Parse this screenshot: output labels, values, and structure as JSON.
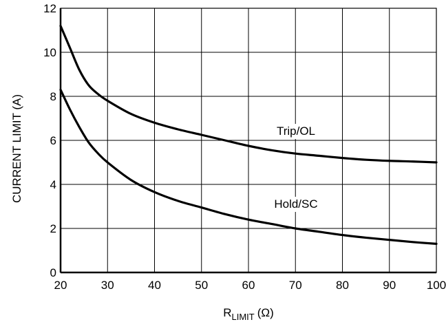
{
  "chart_data": {
    "type": "line",
    "xlabel": {
      "main": "R",
      "sub": "LIMIT",
      "unit": "(Ω)"
    },
    "ylabel": "CURRENT LIMIT (A)",
    "xlim": [
      20,
      100
    ],
    "ylim": [
      0,
      12
    ],
    "x_ticks": [
      20,
      30,
      40,
      50,
      60,
      70,
      80,
      90,
      100
    ],
    "y_ticks": [
      0,
      2,
      4,
      6,
      8,
      10,
      12
    ],
    "grid": true,
    "legend": "none",
    "series": [
      {
        "name": "Trip/OL",
        "x": [
          20,
          22,
          24,
          26,
          28,
          30,
          35,
          40,
          45,
          50,
          55,
          60,
          65,
          70,
          75,
          80,
          85,
          90,
          95,
          100
        ],
        "y": [
          11.2,
          10.2,
          9.2,
          8.5,
          8.1,
          7.8,
          7.2,
          6.8,
          6.5,
          6.25,
          6.0,
          5.75,
          5.55,
          5.4,
          5.3,
          5.2,
          5.12,
          5.07,
          5.04,
          5.0
        ]
      },
      {
        "name": "Hold/SC",
        "x": [
          20,
          22,
          24,
          26,
          28,
          30,
          35,
          40,
          45,
          50,
          55,
          60,
          65,
          70,
          75,
          80,
          85,
          90,
          95,
          100
        ],
        "y": [
          8.3,
          7.4,
          6.6,
          5.9,
          5.4,
          5.0,
          4.2,
          3.65,
          3.25,
          2.95,
          2.65,
          2.4,
          2.2,
          2.0,
          1.85,
          1.7,
          1.58,
          1.48,
          1.38,
          1.3
        ]
      }
    ]
  }
}
